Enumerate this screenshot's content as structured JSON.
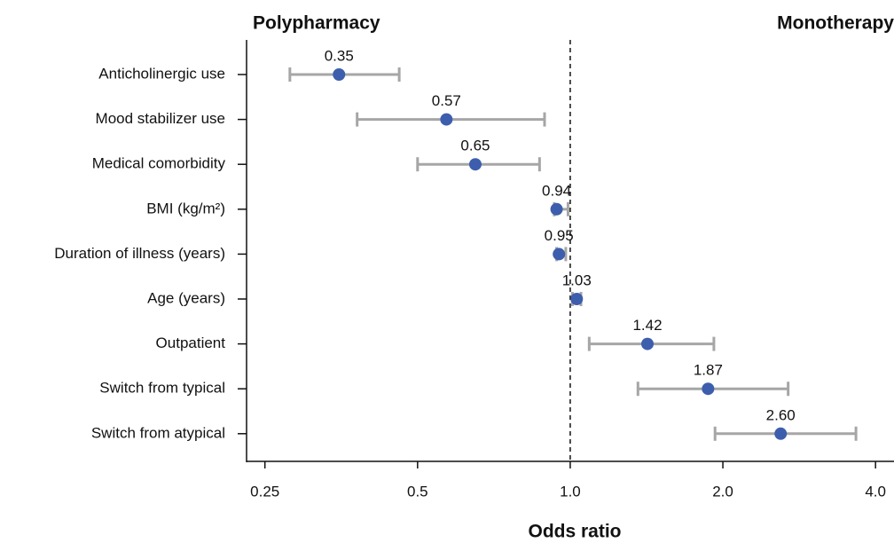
{
  "chart_data": {
    "type": "forest",
    "left_header": "Polypharmacy",
    "right_header": "Monotherapy",
    "x_label": "Odds ratio",
    "categories": [
      "Anticholinergic use",
      "Mood stabilizer use",
      "Medical comorbidity",
      "BMI (kg/m²)",
      "Duration of illness (years)",
      "Age (years)",
      "Outpatient",
      "Switch from typical",
      "Switch from atypical"
    ],
    "values": [
      0.35,
      0.57,
      0.65,
      0.94,
      0.95,
      1.03,
      1.42,
      1.87,
      2.6
    ],
    "value_labels": [
      "0.35",
      "0.57",
      "0.65",
      "0.94",
      "0.95",
      "1.03",
      "1.42",
      "1.87",
      "2.60"
    ],
    "lower": [
      0.28,
      0.38,
      0.5,
      0.93,
      0.94,
      1.01,
      1.09,
      1.36,
      1.93
    ],
    "upper": [
      0.46,
      0.89,
      0.87,
      0.99,
      0.98,
      1.05,
      1.92,
      2.69,
      3.66
    ],
    "reference": 1,
    "xlim": [
      0.23,
      4.35
    ],
    "log_x": true,
    "xticks": [
      0.25,
      0.5,
      {
        "value": 1,
        "label": "1.0"
      },
      {
        "value": 2,
        "label": "2.0"
      },
      {
        "value": 4,
        "label": "4.0"
      }
    ],
    "point_color": "#3d5ead",
    "ci_color": "#a6a6a6"
  }
}
